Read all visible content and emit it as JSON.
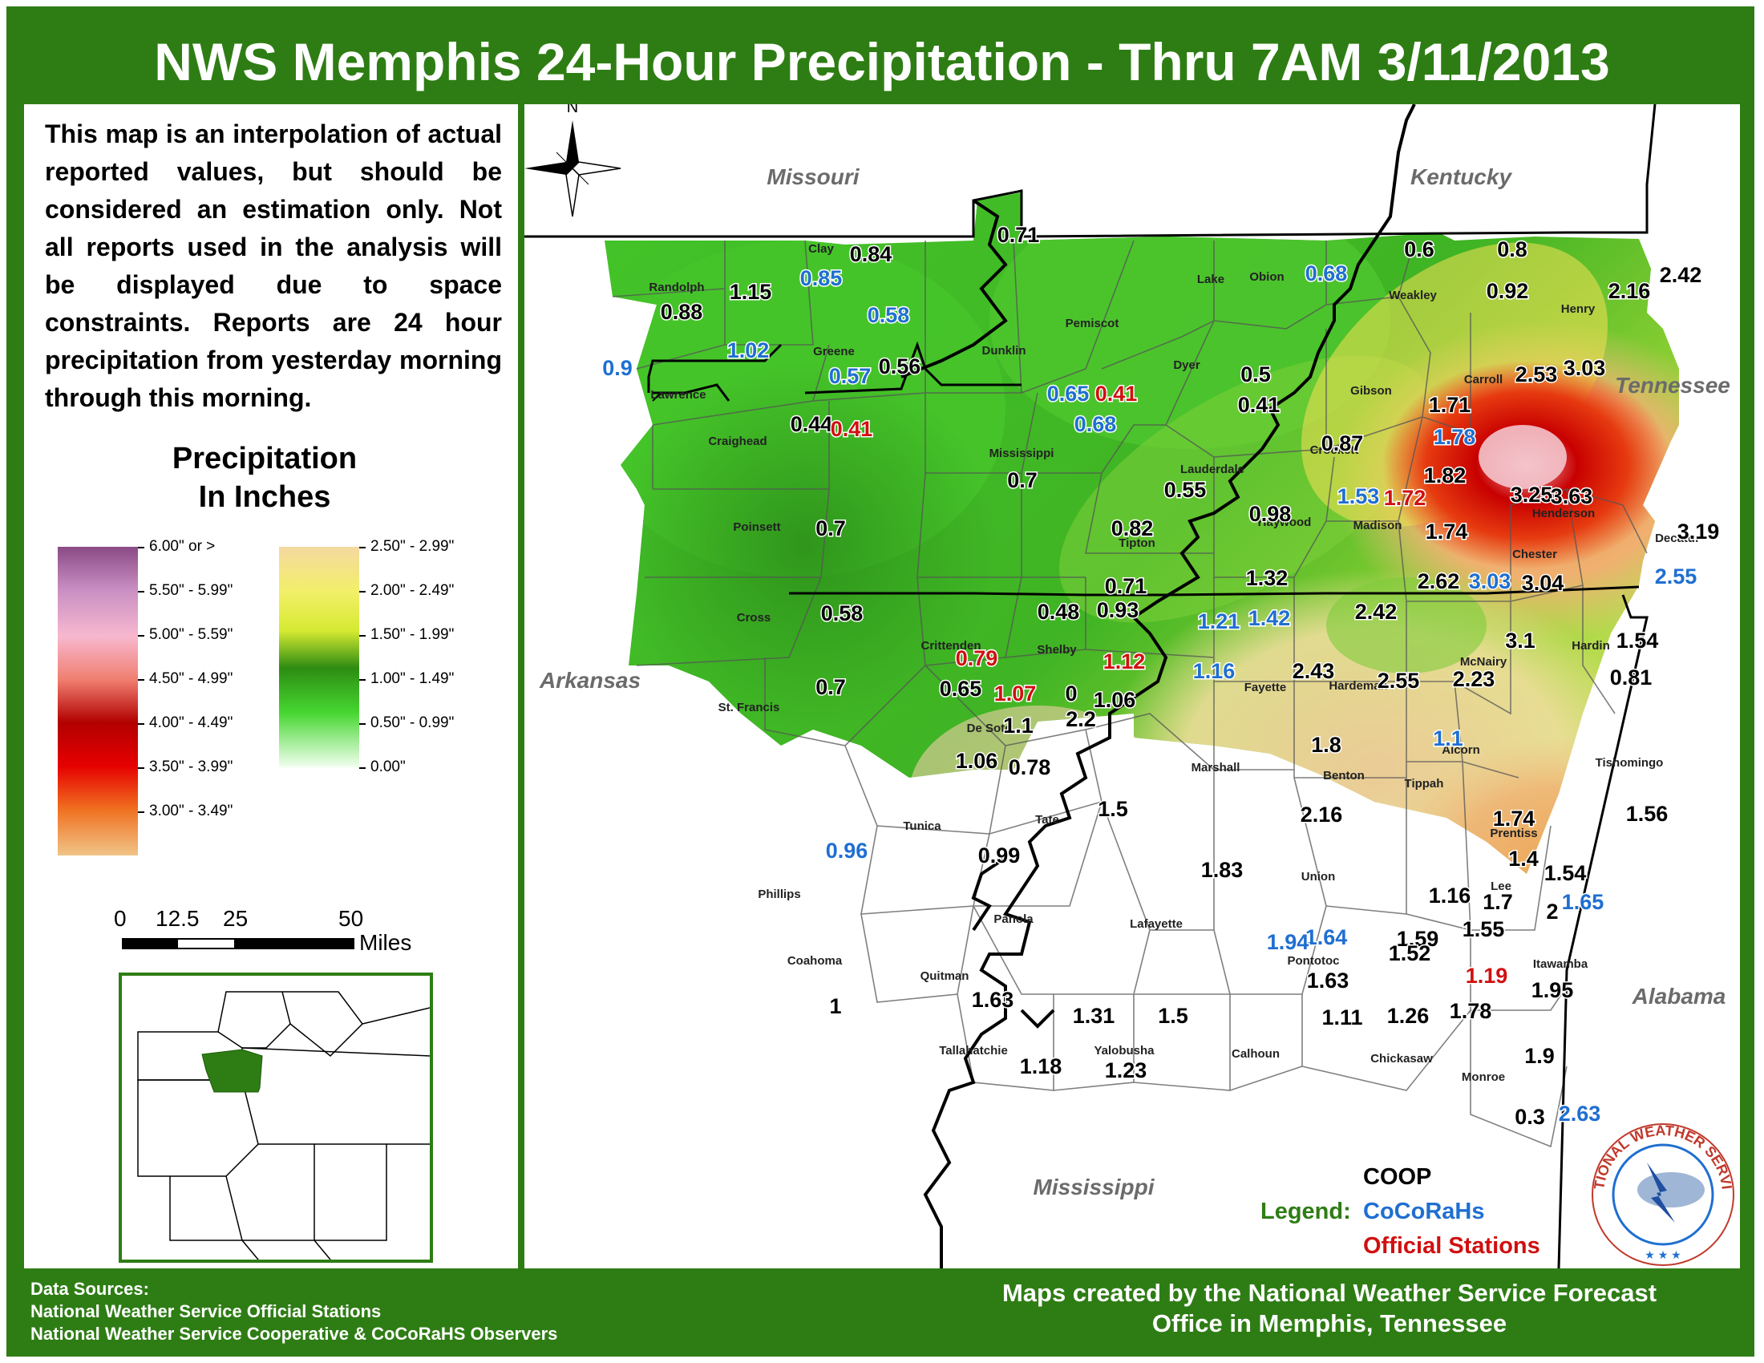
{
  "title": "NWS Memphis 24-Hour Precipitation - Thru 7AM 3/11/2013",
  "disclaimer": "This map is an interpolation of actual reported values, but should be considered an estimation only. Not all reports used in the analysis will be displayed due to space constraints. Reports are 24 hour precipitation from yesterday morning through this morning.",
  "legend": {
    "title_line1": "Precipitation",
    "title_line2": "In Inches",
    "left_ramp": [
      "6.00\" or >",
      "5.50\" - 5.99\"",
      "5.00\" - 5.59\"",
      "4.50\" - 4.99\"",
      "4.00\" - 4.49\"",
      "3.50\" - 3.99\"",
      "3.00\" - 3.49\""
    ],
    "right_ramp": [
      "2.50\" - 2.99\"",
      "2.00\" - 2.49\"",
      "1.50\" - 1.99\"",
      "1.00\" - 1.49\"",
      "0.50\" - 0.99\"",
      "0.00\""
    ]
  },
  "scale_bar": {
    "labels": [
      "0",
      "12.5",
      "25",
      "50"
    ],
    "unit": "Miles"
  },
  "states": [
    "Missouri",
    "Kentucky",
    "Tennessee",
    "Arkansas",
    "Mississippi",
    "Alabama"
  ],
  "counties": [
    "Clay",
    "Randolph",
    "Greene",
    "Lawrence",
    "Dunklin",
    "Pemiscot",
    "Lake",
    "Obion",
    "Weakley",
    "Henry",
    "Craighead",
    "Mississippi",
    "Dyer",
    "Gibson",
    "Carroll",
    "Crockett",
    "Lauderdale",
    "Madison",
    "Henderson",
    "Decatur",
    "Poinsett",
    "Tipton",
    "Haywood",
    "Chester",
    "Cross",
    "Crittenden",
    "Shelby",
    "Fayette",
    "Hardeman",
    "McNairy",
    "Hardin",
    "St. Francis",
    "De Soto",
    "Marshall",
    "Benton",
    "Tippah",
    "Alcorn",
    "Tishomingo",
    "Lee",
    "Tunica",
    "Tate",
    "Prentiss",
    "Phillips",
    "Union",
    "Panola",
    "Lafayette",
    "Pontotoc",
    "Itawamba",
    "Coahoma",
    "Quitman",
    "Tallahatchie",
    "Yalobusha",
    "Calhoun",
    "Chickasaw",
    "Monroe"
  ],
  "observations": [
    {
      "v": "0.84",
      "net": "coop"
    },
    {
      "v": "0.85",
      "net": "cocorahs"
    },
    {
      "v": "1.15",
      "net": "coop"
    },
    {
      "v": "0.88",
      "net": "coop"
    },
    {
      "v": "0.58",
      "net": "cocorahs"
    },
    {
      "v": "1.02",
      "net": "cocorahs"
    },
    {
      "v": "0.9",
      "net": "cocorahs"
    },
    {
      "v": "0.57",
      "net": "cocorahs"
    },
    {
      "v": "0.56",
      "net": "coop"
    },
    {
      "v": "0.71",
      "net": "coop"
    },
    {
      "v": "0.68",
      "net": "cocorahs"
    },
    {
      "v": "0.6",
      "net": "coop"
    },
    {
      "v": "0.8",
      "net": "coop"
    },
    {
      "v": "0.92",
      "net": "coop"
    },
    {
      "v": "2.16",
      "net": "coop"
    },
    {
      "v": "2.42",
      "net": "coop"
    },
    {
      "v": "0.44",
      "net": "coop"
    },
    {
      "v": "0.41",
      "net": "official"
    },
    {
      "v": "0.65",
      "net": "cocorahs"
    },
    {
      "v": "0.41",
      "net": "official"
    },
    {
      "v": "0.68",
      "net": "cocorahs"
    },
    {
      "v": "0.5",
      "net": "coop"
    },
    {
      "v": "0.41",
      "net": "coop"
    },
    {
      "v": "2.53",
      "net": "coop"
    },
    {
      "v": "3.03",
      "net": "coop"
    },
    {
      "v": "1.71",
      "net": "coop"
    },
    {
      "v": "1.78",
      "net": "cocorahs"
    },
    {
      "v": "0.87",
      "net": "coop"
    },
    {
      "v": "1.82",
      "net": "coop"
    },
    {
      "v": "0.7",
      "net": "coop"
    },
    {
      "v": "0.55",
      "net": "coop"
    },
    {
      "v": "3.25",
      "net": "coop"
    },
    {
      "v": "3.63",
      "net": "coop"
    },
    {
      "v": "1.53",
      "net": "cocorahs"
    },
    {
      "v": "1.72",
      "net": "official"
    },
    {
      "v": "0.98",
      "net": "coop"
    },
    {
      "v": "0.7",
      "net": "coop"
    },
    {
      "v": "0.82",
      "net": "coop"
    },
    {
      "v": "1.74",
      "net": "coop"
    },
    {
      "v": "3.19",
      "net": "coop"
    },
    {
      "v": "2.62",
      "net": "coop"
    },
    {
      "v": "3.03",
      "net": "cocorahs"
    },
    {
      "v": "3.04",
      "net": "coop"
    },
    {
      "v": "2.55",
      "net": "cocorahs"
    },
    {
      "v": "1.32",
      "net": "coop"
    },
    {
      "v": "0.71",
      "net": "coop"
    },
    {
      "v": "0.58",
      "net": "coop"
    },
    {
      "v": "0.48",
      "net": "coop"
    },
    {
      "v": "0.93",
      "net": "coop"
    },
    {
      "v": "1.21",
      "net": "cocorahs"
    },
    {
      "v": "1.42",
      "net": "cocorahs"
    },
    {
      "v": "2.42",
      "net": "coop"
    },
    {
      "v": "0.79",
      "net": "official"
    },
    {
      "v": "1.12",
      "net": "official"
    },
    {
      "v": "3.1",
      "net": "coop"
    },
    {
      "v": "1.54",
      "net": "coop"
    },
    {
      "v": "0.7",
      "net": "coop"
    },
    {
      "v": "1.16",
      "net": "cocorahs"
    },
    {
      "v": "2.43",
      "net": "coop"
    },
    {
      "v": "2.55",
      "net": "coop"
    },
    {
      "v": "2.23",
      "net": "coop"
    },
    {
      "v": "0.81",
      "net": "coop"
    },
    {
      "v": "0.65",
      "net": "coop"
    },
    {
      "v": "1.07",
      "net": "official"
    },
    {
      "v": "0",
      "net": "coop"
    },
    {
      "v": "1.06",
      "net": "coop"
    },
    {
      "v": "1.1",
      "net": "coop"
    },
    {
      "v": "2.2",
      "net": "coop"
    },
    {
      "v": "1.8",
      "net": "coop"
    },
    {
      "v": "1.1",
      "net": "cocorahs"
    },
    {
      "v": "1.06",
      "net": "coop"
    },
    {
      "v": "0.78",
      "net": "coop"
    },
    {
      "v": "1.5",
      "net": "coop"
    },
    {
      "v": "2.16",
      "net": "coop"
    },
    {
      "v": "1.56",
      "net": "coop"
    },
    {
      "v": "1.74",
      "net": "coop"
    },
    {
      "v": "0.96",
      "net": "cocorahs"
    },
    {
      "v": "0.99",
      "net": "coop"
    },
    {
      "v": "1.83",
      "net": "coop"
    },
    {
      "v": "1.4",
      "net": "coop"
    },
    {
      "v": "1.54",
      "net": "coop"
    },
    {
      "v": "1.16",
      "net": "coop"
    },
    {
      "v": "1.7",
      "net": "coop"
    },
    {
      "v": "1.65",
      "net": "cocorahs"
    },
    {
      "v": "1.55",
      "net": "coop"
    },
    {
      "v": "2",
      "net": "coop"
    },
    {
      "v": "1.64",
      "net": "cocorahs"
    },
    {
      "v": "1.59",
      "net": "coop"
    },
    {
      "v": "1.94",
      "net": "cocorahs"
    },
    {
      "v": "1.52",
      "net": "coop"
    },
    {
      "v": "1.19",
      "net": "official"
    },
    {
      "v": "1.63",
      "net": "coop"
    },
    {
      "v": "1.95",
      "net": "coop"
    },
    {
      "v": "1",
      "net": "coop"
    },
    {
      "v": "1.63",
      "net": "coop"
    },
    {
      "v": "1.31",
      "net": "coop"
    },
    {
      "v": "1.5",
      "net": "coop"
    },
    {
      "v": "1.11",
      "net": "coop"
    },
    {
      "v": "1.26",
      "net": "coop"
    },
    {
      "v": "1.78",
      "net": "coop"
    },
    {
      "v": "1.18",
      "net": "coop"
    },
    {
      "v": "1.23",
      "net": "coop"
    },
    {
      "v": "1.9",
      "net": "coop"
    },
    {
      "v": "0.3",
      "net": "coop"
    },
    {
      "v": "2.63",
      "net": "cocorahs"
    }
  ],
  "station_legend": {
    "label": "Legend:",
    "coop": "COOP",
    "cocorahs": "CoCoRaHs",
    "official": "Official Stations"
  },
  "logo_text": "NATIONAL WEATHER SERVICE",
  "compass_label": "N",
  "footer_left": [
    "Data Sources:",
    "National Weather Service Official Stations",
    "National Weather Service Cooperative & CoCoRaHS Observers"
  ],
  "footer_right": [
    "Maps created by the National Weather Service Forecast",
    "Office in Memphis, Tennessee"
  ],
  "colors": {
    "frame_green": "#2e7d14",
    "coop": "#000000",
    "cocorahs": "#1f6fd1",
    "official": "#d01010",
    "legend_label": "#2e7d14",
    "state_label": "#6b6b6b"
  }
}
